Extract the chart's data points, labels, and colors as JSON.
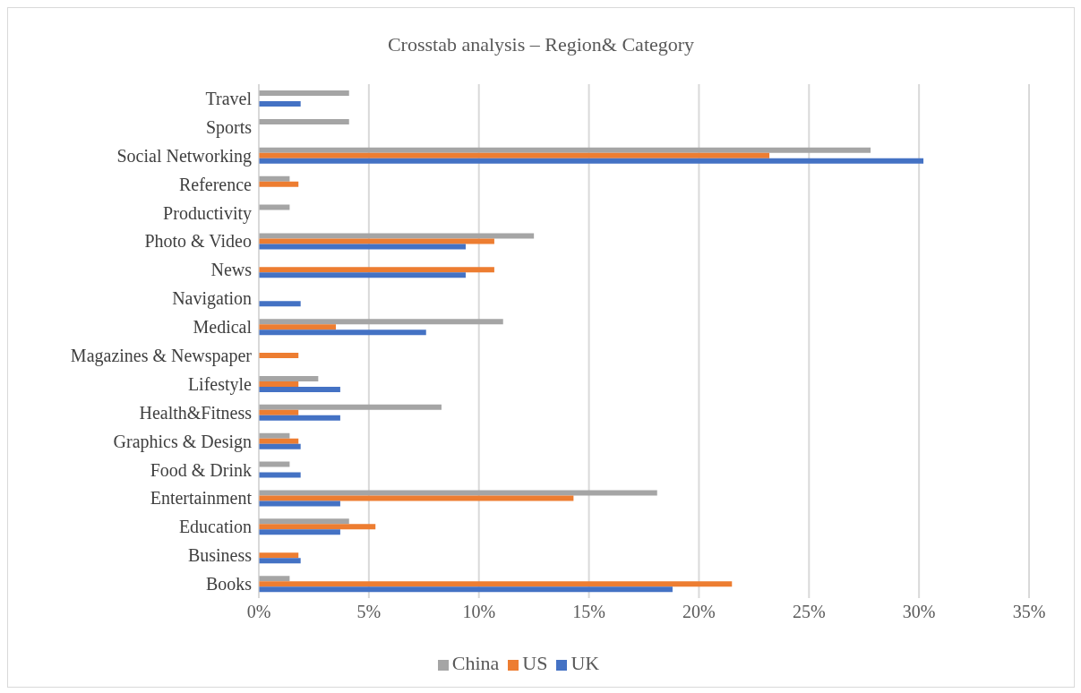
{
  "chart_data": {
    "type": "bar",
    "orientation": "horizontal",
    "title": "Crosstab analysis – Region& Category",
    "categories": [
      "Travel",
      "Sports",
      "Social Networking",
      "Reference",
      "Productivity",
      "Photo & Video",
      "News",
      "Navigation",
      "Medical",
      "Magazines & Newspaper",
      "Lifestyle",
      "Health&Fitness",
      "Graphics & Design",
      "Food & Drink",
      "Entertainment",
      "Education",
      "Business",
      "Books"
    ],
    "series": [
      {
        "name": "China",
        "color": "#a5a5a5",
        "values": [
          4.1,
          4.1,
          27.8,
          1.4,
          1.4,
          12.5,
          null,
          null,
          11.1,
          null,
          2.7,
          8.3,
          1.4,
          1.4,
          18.1,
          4.1,
          null,
          1.4
        ]
      },
      {
        "name": "US",
        "color": "#ed7d31",
        "values": [
          null,
          null,
          23.2,
          1.8,
          null,
          10.7,
          10.7,
          null,
          3.5,
          1.8,
          1.8,
          1.8,
          1.8,
          null,
          14.3,
          5.3,
          1.8,
          21.5
        ]
      },
      {
        "name": "UK",
        "color": "#4472c4",
        "values": [
          1.9,
          null,
          30.2,
          null,
          null,
          9.4,
          9.4,
          1.9,
          7.6,
          null,
          3.7,
          3.7,
          1.9,
          1.9,
          3.7,
          3.7,
          1.9,
          18.8
        ]
      }
    ],
    "xlim": [
      0,
      35
    ],
    "xticks": [
      {
        "value": 0,
        "label": "0%"
      },
      {
        "value": 5,
        "label": "5%"
      },
      {
        "value": 10,
        "label": "10%"
      },
      {
        "value": 15,
        "label": "15%"
      },
      {
        "value": 20,
        "label": "20%"
      },
      {
        "value": 25,
        "label": "25%"
      },
      {
        "value": 30,
        "label": "30%"
      },
      {
        "value": 35,
        "label": "35%"
      }
    ],
    "grid": "x",
    "legend": "bottom"
  }
}
